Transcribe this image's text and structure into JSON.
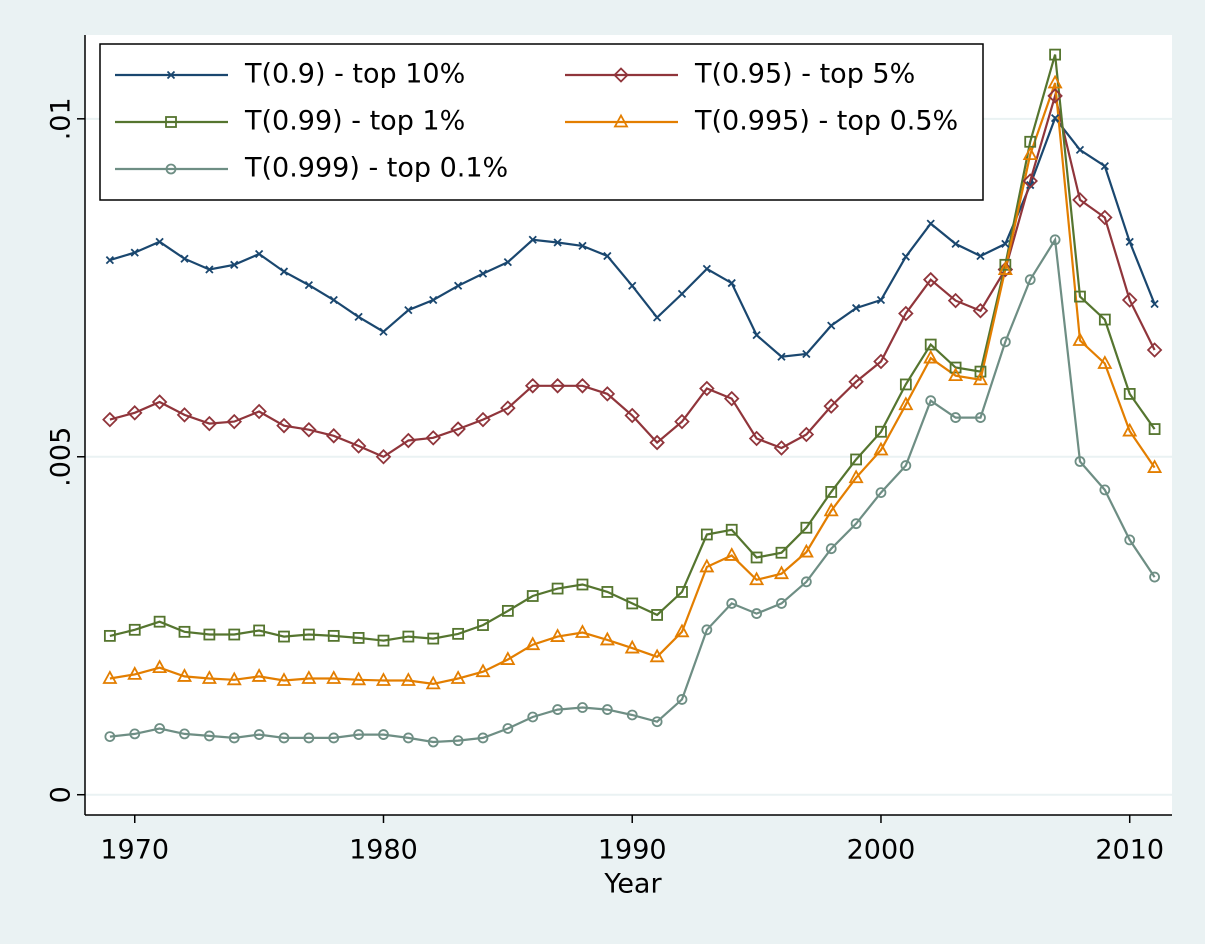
{
  "chart_data": {
    "type": "line",
    "xlabel": "Year",
    "x": [
      1969,
      1970,
      1971,
      1972,
      1973,
      1974,
      1975,
      1976,
      1977,
      1978,
      1979,
      1980,
      1981,
      1982,
      1983,
      1984,
      1985,
      1986,
      1987,
      1988,
      1989,
      1990,
      1991,
      1992,
      1993,
      1994,
      1995,
      1996,
      1997,
      1998,
      1999,
      2000,
      2001,
      2002,
      2003,
      2004,
      2005,
      2006,
      2007,
      2008,
      2009,
      2010,
      2011
    ],
    "xlim": [
      1968,
      2011.7
    ],
    "xticks": [
      1970,
      1980,
      1990,
      2000,
      2010
    ],
    "ylim": [
      -0.0003,
      0.01124
    ],
    "yticks": [
      0,
      {
        "value": 0.005,
        "label": ".005"
      },
      {
        "value": 0.01,
        "label": ".01"
      }
    ],
    "grid": true,
    "legend": "top-left",
    "series": [
      {
        "name": "T(0.9) - top 10%",
        "color": "#1a476f",
        "marker": "x",
        "values": [
          0.00791,
          0.00802,
          0.00818,
          0.00793,
          0.00777,
          0.00784,
          0.008,
          0.00774,
          0.00754,
          0.00732,
          0.00707,
          0.00685,
          0.00717,
          0.00732,
          0.00753,
          0.00771,
          0.00788,
          0.00821,
          0.00817,
          0.00812,
          0.00797,
          0.00753,
          0.00706,
          0.00741,
          0.00778,
          0.00757,
          0.0068,
          0.00648,
          0.00652,
          0.00694,
          0.0072,
          0.00732,
          0.00796,
          0.00845,
          0.00815,
          0.00797,
          0.00815,
          0.00902,
          0.01001,
          0.00954,
          0.0093,
          0.00818,
          0.00726
        ]
      },
      {
        "name": "T(0.95) - top 5%",
        "color": "#90353b",
        "marker": "diamond",
        "values": [
          0.00555,
          0.00565,
          0.00581,
          0.00562,
          0.00549,
          0.00552,
          0.00567,
          0.00546,
          0.0054,
          0.00531,
          0.00516,
          0.005,
          0.00524,
          0.00528,
          0.00541,
          0.00555,
          0.00572,
          0.00605,
          0.00605,
          0.00605,
          0.00593,
          0.00561,
          0.00521,
          0.00552,
          0.00601,
          0.00586,
          0.00527,
          0.00513,
          0.00533,
          0.00575,
          0.00611,
          0.00641,
          0.00712,
          0.00762,
          0.00731,
          0.00716,
          0.00777,
          0.00908,
          0.01034,
          0.0088,
          0.00854,
          0.00732,
          0.00658
        ]
      },
      {
        "name": "T(0.99) - top 1%",
        "color": "#55752f",
        "marker": "square",
        "values": [
          0.00235,
          0.00244,
          0.00256,
          0.00241,
          0.00237,
          0.00237,
          0.00243,
          0.00234,
          0.00237,
          0.00235,
          0.00232,
          0.00228,
          0.00234,
          0.00231,
          0.00238,
          0.00251,
          0.00272,
          0.00294,
          0.00305,
          0.00311,
          0.003,
          0.00283,
          0.00266,
          0.003,
          0.00385,
          0.00392,
          0.00351,
          0.00358,
          0.00395,
          0.00448,
          0.00496,
          0.00537,
          0.00607,
          0.00666,
          0.00632,
          0.00626,
          0.00784,
          0.00966,
          0.01095,
          0.00737,
          0.00703,
          0.00593,
          0.00541
        ]
      },
      {
        "name": "T(0.995) - top 0.5%",
        "color": "#e37e00",
        "marker": "triangle",
        "values": [
          0.00172,
          0.00178,
          0.00188,
          0.00175,
          0.00172,
          0.0017,
          0.00175,
          0.00169,
          0.00172,
          0.00172,
          0.0017,
          0.00169,
          0.00169,
          0.00164,
          0.00172,
          0.00182,
          0.002,
          0.00222,
          0.00234,
          0.0024,
          0.00229,
          0.00217,
          0.00204,
          0.00241,
          0.00337,
          0.00354,
          0.00318,
          0.00327,
          0.00359,
          0.0042,
          0.00469,
          0.0051,
          0.00577,
          0.00646,
          0.0062,
          0.00614,
          0.00777,
          0.00947,
          0.01053,
          0.00672,
          0.00638,
          0.00538,
          0.00484
        ]
      },
      {
        "name": "T(0.999) - top 0.1%",
        "color": "#6e8e84",
        "marker": "circle",
        "values": [
          0.00086,
          0.0009,
          0.00098,
          0.0009,
          0.00087,
          0.00084,
          0.00089,
          0.00084,
          0.00084,
          0.00084,
          0.00089,
          0.00089,
          0.00084,
          0.00078,
          0.0008,
          0.00084,
          0.00098,
          0.00115,
          0.00126,
          0.00129,
          0.00126,
          0.00118,
          0.00108,
          0.00141,
          0.00244,
          0.00283,
          0.00268,
          0.00283,
          0.00315,
          0.00364,
          0.00401,
          0.00447,
          0.00487,
          0.00583,
          0.00558,
          0.00558,
          0.0067,
          0.00762,
          0.00821,
          0.00493,
          0.00451,
          0.00377,
          0.00322
        ]
      }
    ]
  }
}
